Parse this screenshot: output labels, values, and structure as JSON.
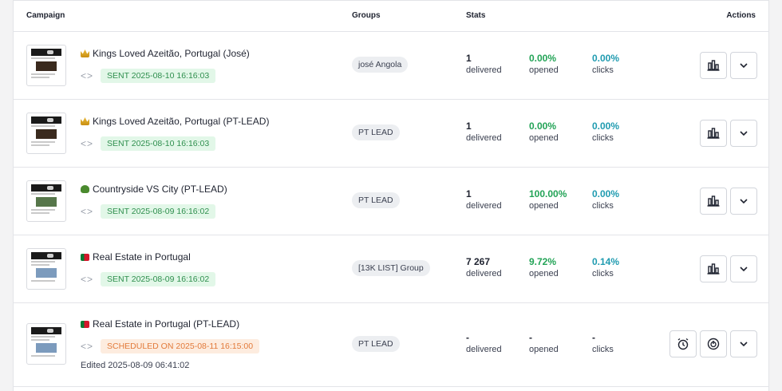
{
  "header": {
    "campaign": "Campaign",
    "groups": "Groups",
    "stats": "Stats",
    "actions": "Actions"
  },
  "rows": [
    {
      "title": "Kings Loved Azeitão, Portugal (José)",
      "emoji_icon": "crown-icon",
      "status": "SENT 2025-08-10 16:16:03",
      "group": "josé Angola",
      "delivered": "1",
      "delivered_label": "delivered",
      "opened": "0.00%",
      "opened_label": "opened",
      "clicks": "0.00%",
      "clicks_label": "clicks"
    },
    {
      "title": "Kings Loved Azeitão, Portugal (PT-LEAD)",
      "emoji_icon": "crown-icon",
      "status": "SENT 2025-08-10 16:16:03",
      "group": "PT LEAD",
      "delivered": "1",
      "delivered_label": "delivered",
      "opened": "0.00%",
      "opened_label": "opened",
      "clicks": "0.00%",
      "clicks_label": "clicks"
    },
    {
      "title": "Countryside VS City (PT-LEAD)",
      "emoji_icon": "tree-icon",
      "status": "SENT 2025-08-09 16:16:02",
      "group": "PT LEAD",
      "delivered": "1",
      "delivered_label": "delivered",
      "opened": "100.00%",
      "opened_label": "opened",
      "clicks": "0.00%",
      "clicks_label": "clicks"
    },
    {
      "title": "Real Estate in Portugal",
      "emoji_icon": "portugal-flag-icon",
      "status": "SENT 2025-08-09 16:16:02",
      "group": "[13K LIST] Group",
      "delivered": "7 267",
      "delivered_label": "delivered",
      "opened": "9.72%",
      "opened_label": "opened",
      "clicks": "0.14%",
      "clicks_label": "clicks"
    },
    {
      "title": "Real Estate in Portugal (PT-LEAD)",
      "emoji_icon": "portugal-flag-icon",
      "status": "SCHEDULED ON 2025-08-11 16:15:00",
      "edited": "Edited 2025-08-09 06:41:02",
      "group": "PT LEAD",
      "delivered": "-",
      "delivered_label": "delivered",
      "opened": "-",
      "opened_label": "opened",
      "clicks": "-",
      "clicks_label": "clicks"
    }
  ],
  "colors": {
    "sent_bg": "#e2f7e8",
    "sent_text": "#2f8f4e",
    "scheduled_bg": "#fdecdf",
    "scheduled_text": "#e27a3a",
    "opened_green": "#22a356",
    "clicks_teal": "#1f9bb0"
  }
}
